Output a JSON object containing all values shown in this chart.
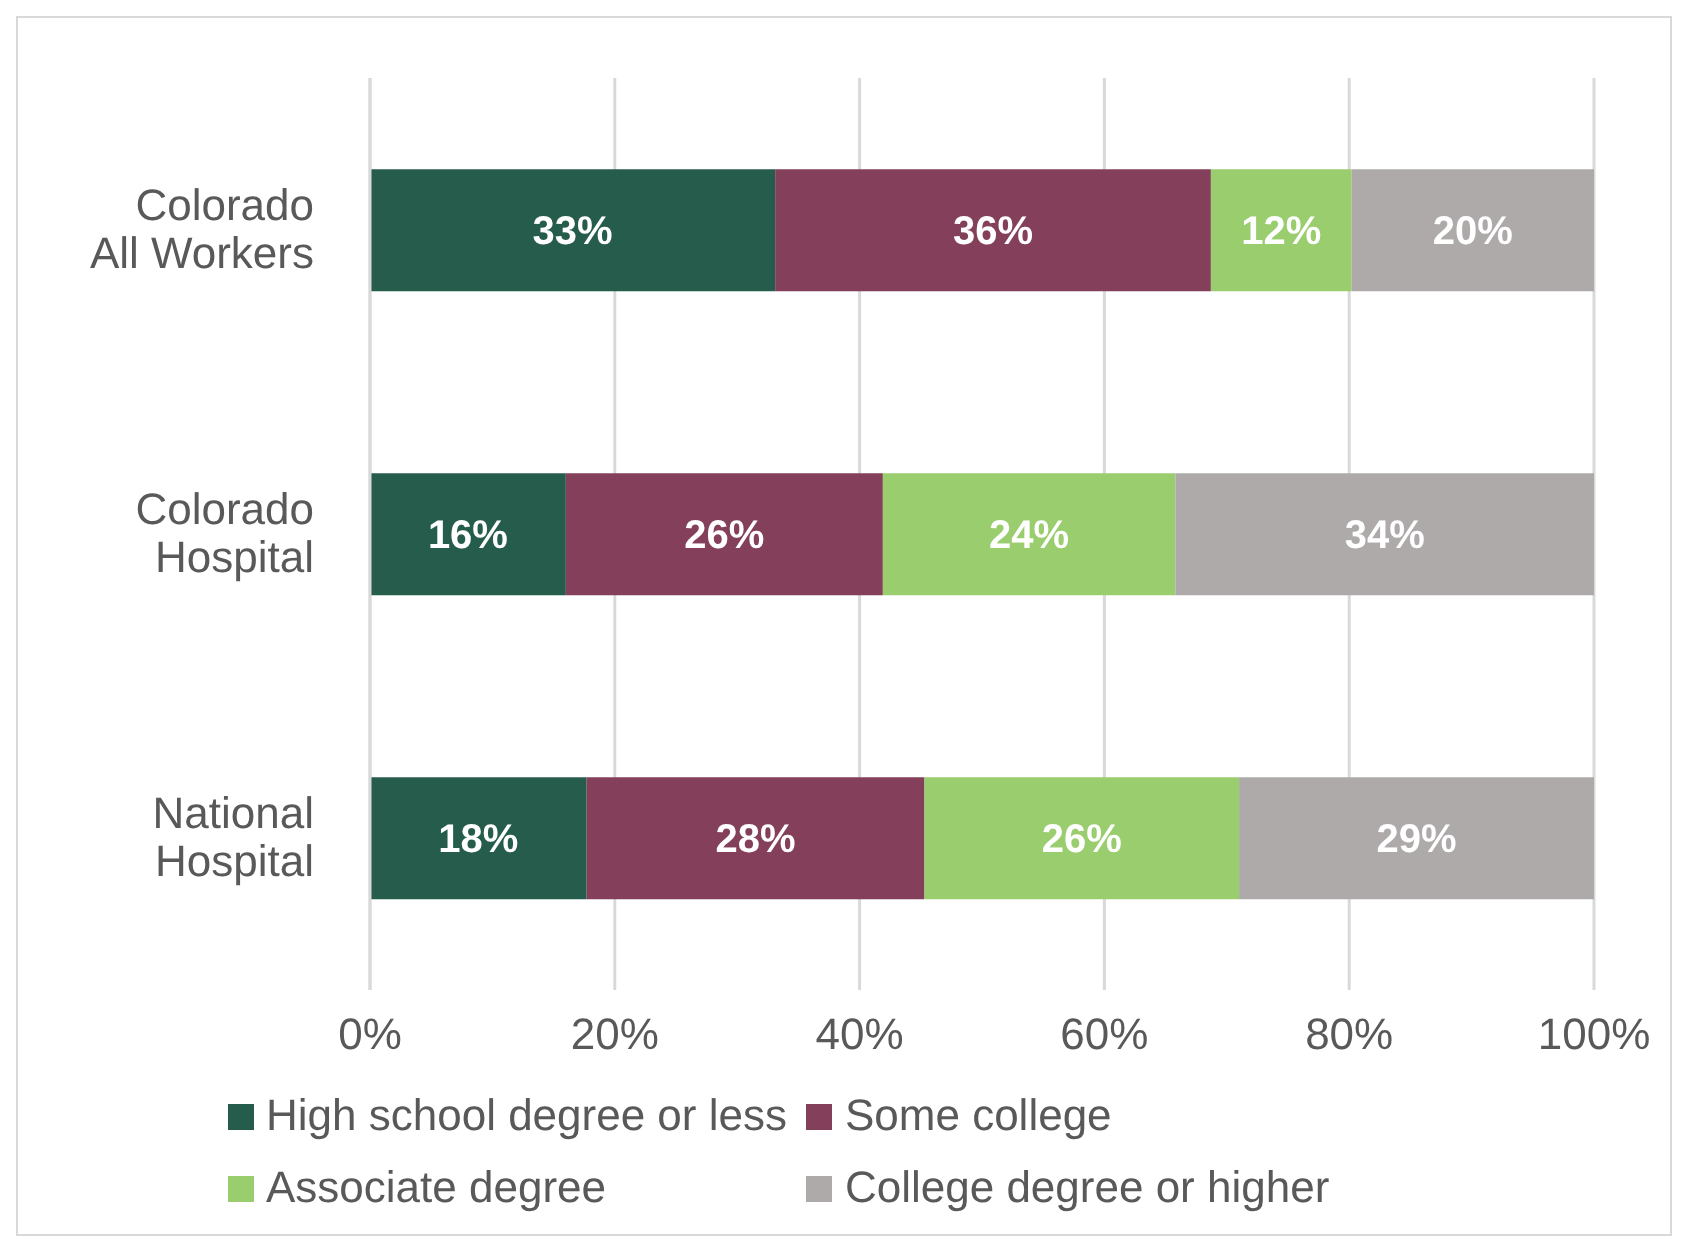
{
  "chart_data": {
    "type": "bar",
    "orientation": "horizontal",
    "stacked": true,
    "categories": [
      "Colorado\nAll Workers",
      "Colorado\nHospital",
      "National\nHospital"
    ],
    "series": [
      {
        "name": "High school degree or less",
        "color": "#265c4b",
        "values": [
          33.1,
          16.0,
          17.7
        ],
        "value_labels": [
          "33%",
          "16%",
          "18%"
        ]
      },
      {
        "name": "Some college",
        "color": "#84405b",
        "values": [
          35.6,
          25.9,
          27.6
        ],
        "value_labels": [
          "36%",
          "26%",
          "28%"
        ]
      },
      {
        "name": "Associate degree",
        "color": "#9acd6e",
        "values": [
          11.5,
          23.9,
          25.7
        ],
        "value_labels": [
          "12%",
          "24%",
          "26%"
        ]
      },
      {
        "name": "College degree or higher",
        "color": "#aeaaaa",
        "values": [
          19.8,
          34.2,
          29.0
        ],
        "value_labels": [
          "20%",
          "34%",
          "29%"
        ]
      }
    ],
    "xlim": [
      0,
      100
    ],
    "xticks": [
      {
        "value": 0,
        "label": "0%"
      },
      {
        "value": 20,
        "label": "20%"
      },
      {
        "value": 40,
        "label": "40%"
      },
      {
        "value": 60,
        "label": "60%"
      },
      {
        "value": 80,
        "label": "80%"
      },
      {
        "value": 100,
        "label": "100%"
      }
    ],
    "grid": "x",
    "legend": "bottom"
  }
}
